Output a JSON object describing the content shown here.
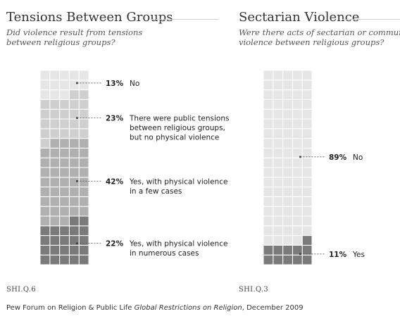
{
  "chart_data": [
    {
      "type": "waffle",
      "title": "Tensions Between Groups",
      "subtitle": "Did violence result from tensions\nbetween religious groups?",
      "reference": "SHI.Q.6",
      "grid": {
        "columns": 5,
        "rows": 20
      },
      "series": [
        {
          "name": "No",
          "value": 13,
          "pct_label": "13%",
          "label_lines": [
            "No"
          ],
          "color": "#e6e6e6"
        },
        {
          "name": "There were public tensions between religious groups, but no physical violence",
          "value": 23,
          "pct_label": "23%",
          "label_lines": [
            "There were public tensions",
            "between religious groups,",
            "but no physical violence"
          ],
          "color": "#cfcfcf"
        },
        {
          "name": "Yes, with physical violence in a few cases",
          "value": 42,
          "pct_label": "42%",
          "label_lines": [
            "Yes, with physical violence",
            "in a few cases"
          ],
          "color": "#b0b0b0"
        },
        {
          "name": "Yes, with physical violence in numerous cases",
          "value": 22,
          "pct_label": "22%",
          "label_lines": [
            "Yes, with physical violence",
            "in numerous cases"
          ],
          "color": "#7a7a7a"
        }
      ]
    },
    {
      "type": "waffle",
      "title": "Sectarian Violence",
      "subtitle": "Were there acts of sectarian or communal\nviolence between religious groups?",
      "reference": "SHI.Q.3",
      "grid": {
        "columns": 5,
        "rows": 20
      },
      "series": [
        {
          "name": "No",
          "value": 89,
          "pct_label": "89%",
          "label_lines": [
            "No"
          ],
          "color": "#e6e6e6"
        },
        {
          "name": "Yes",
          "value": 11,
          "pct_label": "11%",
          "label_lines": [
            "Yes"
          ],
          "color": "#7a7a7a"
        }
      ]
    }
  ],
  "footer": {
    "source_prefix": "Pew Forum on Religion & Public Life ",
    "source_title": "Global Restrictions on Religion",
    "source_suffix": ", December 2009"
  }
}
